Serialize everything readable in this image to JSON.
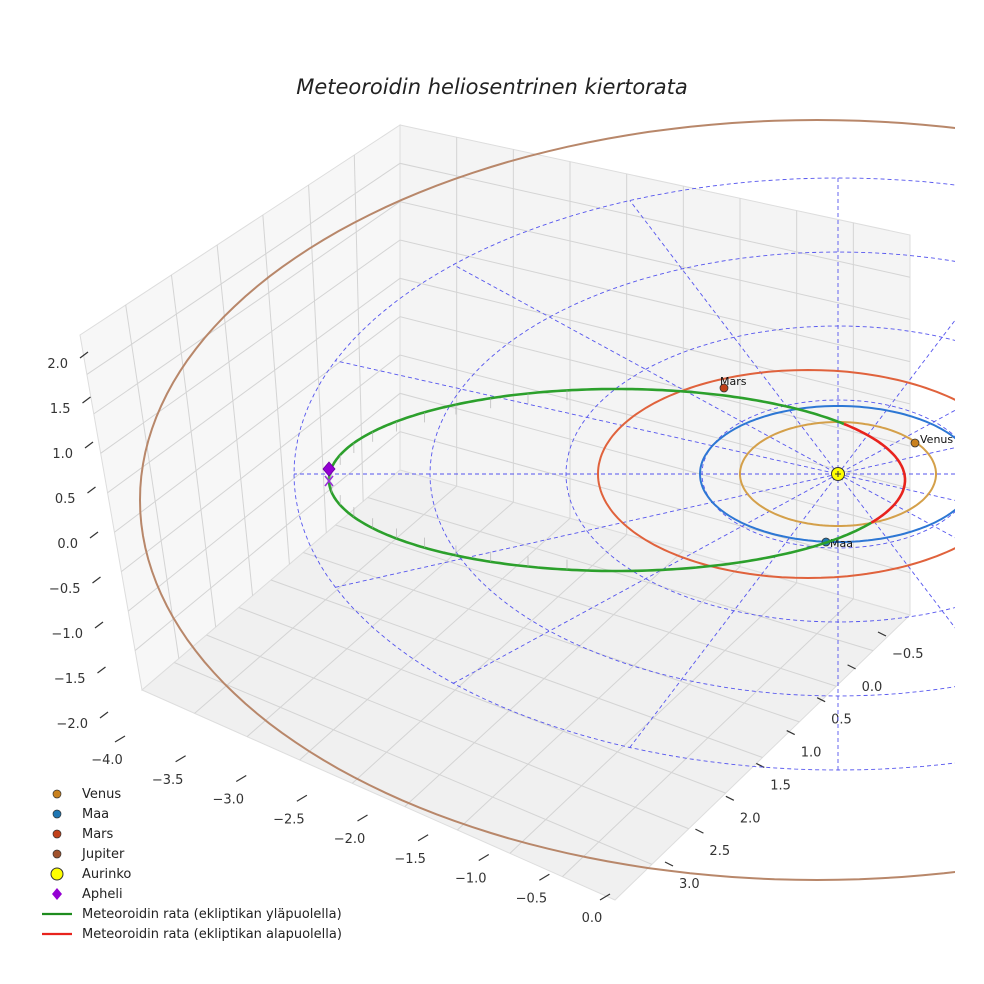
{
  "chart_data": {
    "type": "line",
    "projection": "3d",
    "title": "Meteoroidin heliosentrinen kiertorata",
    "xaxis": {
      "ticks": [
        "−4.0",
        "−3.5",
        "−3.0",
        "−2.5",
        "−2.0",
        "−1.5",
        "−1.0",
        "−0.5",
        "0.0"
      ],
      "range": [
        -4.0,
        0.0
      ]
    },
    "yaxis": {
      "ticks": [
        "−0.5",
        "0.0",
        "0.5",
        "1.0",
        "1.5",
        "2.0",
        "2.5",
        "3.0"
      ],
      "range": [
        -0.5,
        3.0
      ]
    },
    "zaxis": {
      "ticks": [
        "2.0",
        "1.5",
        "1.0",
        "0.5",
        "0.0",
        "−0.5",
        "−1.0",
        "−1.5",
        "−2.0"
      ],
      "range": [
        -2.0,
        2.0
      ]
    },
    "planets": [
      {
        "name": "Venus",
        "label": "Venus",
        "orbit_radius_au": 0.72,
        "color": "#d4a04a",
        "marker_color": "#c9811e"
      },
      {
        "name": "Maa",
        "label": "Maa",
        "orbit_radius_au": 1.0,
        "color": "#2d77d4",
        "marker_color": "#1f77b4"
      },
      {
        "name": "Mars",
        "label": "Mars",
        "orbit_radius_au": 1.52,
        "color": "#e0623c",
        "marker_color": "#c1411a"
      },
      {
        "name": "Jupiter",
        "orbit_radius_au": 5.2,
        "color": "#b8876a",
        "marker_color": "#a0522d"
      }
    ],
    "sun": {
      "name": "Aurinko",
      "x": 0.0,
      "y": 0.0,
      "z": 0.0,
      "color": "#ffff00"
    },
    "aphelion": {
      "name": "Apheli",
      "x": -3.7,
      "y": 0.0,
      "z": 0.0,
      "color": "#9400d3"
    },
    "meteoroid_orbit": {
      "aphelion_au": 3.7,
      "perihelion_au": 0.55,
      "above_ecliptic": {
        "name": "Meteoroidin rata (ekliptikan yläpuolella)",
        "color": "#2ca02c"
      },
      "below_ecliptic": {
        "name": "Meteoroidin rata (ekliptikan alapuolella)",
        "color": "#e8231d"
      }
    },
    "reference_grid": {
      "rings_au": [
        1,
        2,
        3,
        4
      ],
      "radial_lines": 8,
      "color": "#5555ee"
    }
  },
  "legend": [
    {
      "label": "Venus",
      "symbol": "dot",
      "color": "#c9811e"
    },
    {
      "label": "Maa",
      "symbol": "dot",
      "color": "#1f77b4"
    },
    {
      "label": "Mars",
      "symbol": "dot",
      "color": "#c1411a"
    },
    {
      "label": "Jupiter",
      "symbol": "dot",
      "color": "#a0522d"
    },
    {
      "label": "Aurinko",
      "symbol": "sun",
      "color": "#ffff00"
    },
    {
      "label": "Apheli",
      "symbol": "diamond",
      "color": "#9400d3"
    },
    {
      "label": "Meteoroidin rata (ekliptikan yläpuolella)",
      "symbol": "line",
      "color": "#1e8c1e"
    },
    {
      "label": "Meteoroidin rata (ekliptikan alapuolella)",
      "symbol": "line",
      "color": "#e8231d"
    }
  ]
}
